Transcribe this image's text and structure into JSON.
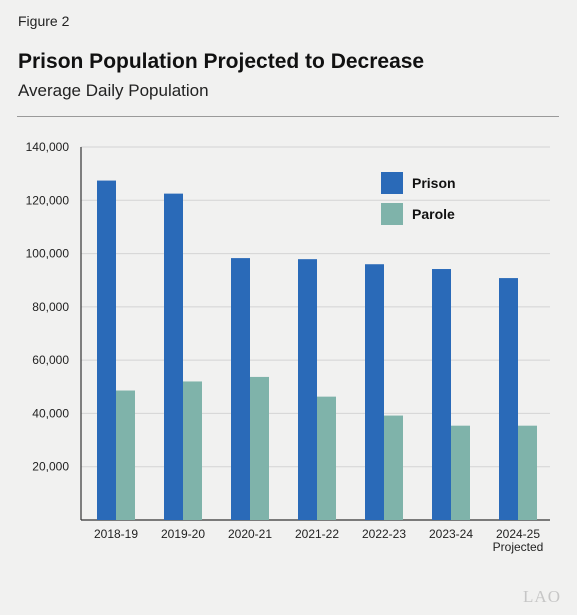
{
  "figure_label": "Figure 2",
  "logo_text": "LAO",
  "colors": {
    "prison": "#2a6ab8",
    "parole": "#7fb3aa",
    "grid": "#d4d4d4",
    "axis": "#333333"
  },
  "chart_data": {
    "type": "bar",
    "title": "Prison Population Projected to Decrease",
    "subtitle": "Average Daily Population",
    "xlabel": "",
    "ylabel": "",
    "ylim": [
      0,
      140000
    ],
    "yticks": [
      20000,
      40000,
      60000,
      80000,
      100000,
      120000,
      140000
    ],
    "ytick_labels": [
      "20,000",
      "40,000",
      "60,000",
      "80,000",
      "100,000",
      "120,000",
      "140,000"
    ],
    "grid": true,
    "legend_position": "top-right",
    "categories": [
      [
        "2018-19"
      ],
      [
        "2019-20"
      ],
      [
        "2020-21"
      ],
      [
        "2021-22"
      ],
      [
        "2022-23"
      ],
      [
        "2023-24"
      ],
      [
        "2024-25",
        "Projected"
      ]
    ],
    "series": [
      {
        "name": "Prison",
        "color": "#2a6ab8",
        "values": [
          127400,
          122500,
          98300,
          97900,
          96000,
          94200,
          90800
        ]
      },
      {
        "name": "Parole",
        "color": "#7fb3aa",
        "values": [
          48600,
          52000,
          53700,
          46300,
          39200,
          35400,
          35400
        ]
      }
    ]
  }
}
